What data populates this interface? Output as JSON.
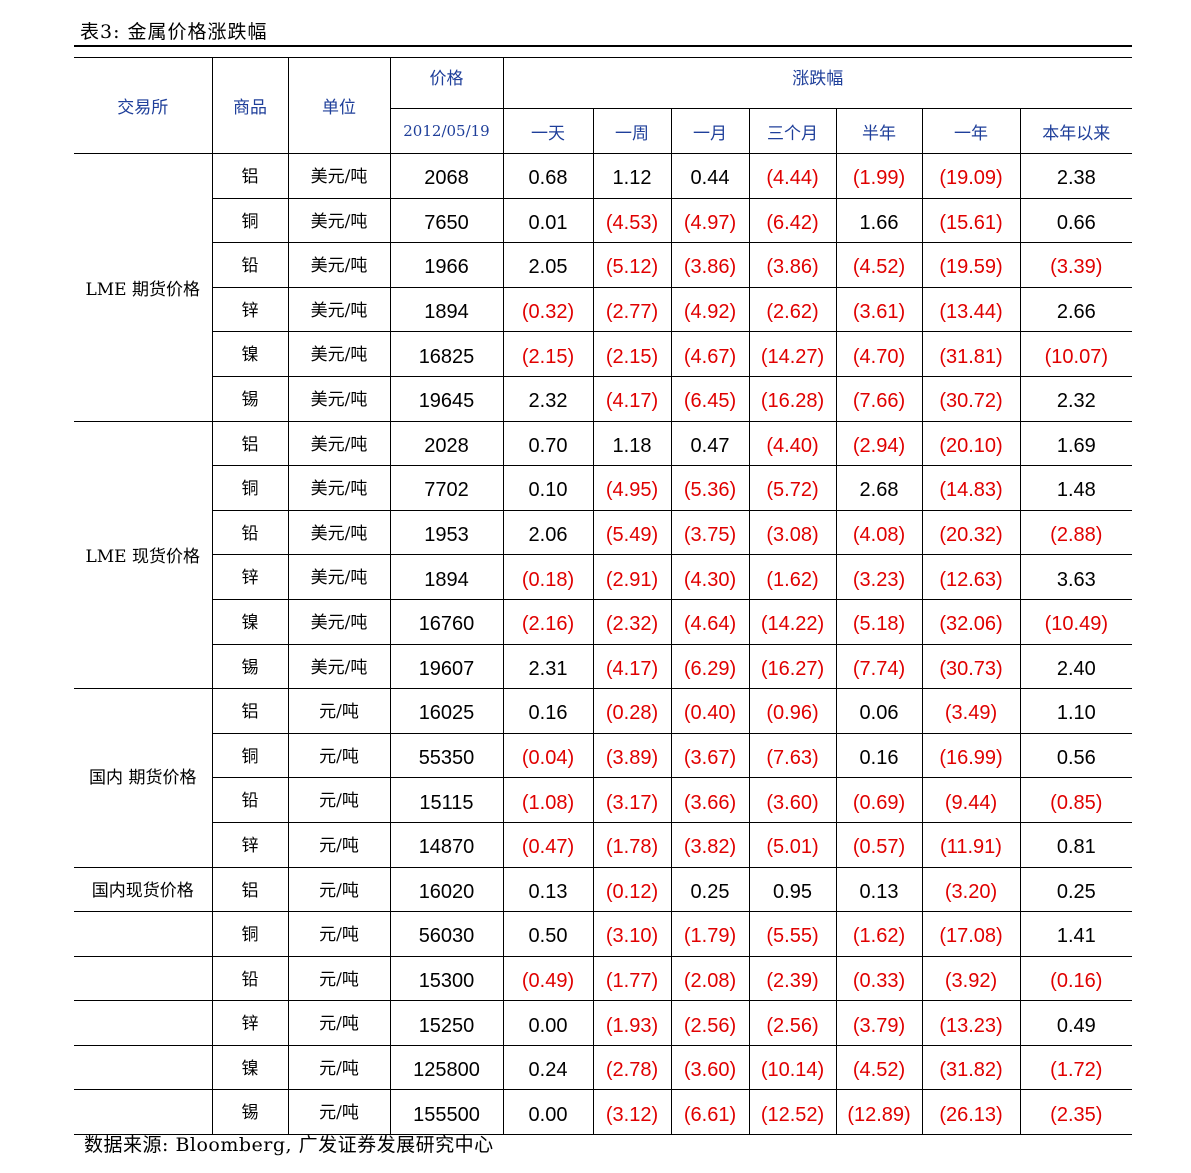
{
  "caption": "表3: 金属价格涨跌幅",
  "headers": {
    "exchange": "交易所",
    "product": "商品",
    "unit": "单位",
    "price": "价格",
    "price_date": "2012/05/19",
    "change": "涨跌幅",
    "periods": [
      "一天",
      "一周",
      "一月",
      "三个月",
      "半年",
      "一年",
      "本年以来"
    ]
  },
  "colors": {
    "header_text": "#1f3f9a",
    "negative": "#e00000"
  },
  "groups": [
    {
      "name": "LME 期货价格",
      "rows": [
        {
          "product": "铝",
          "unit": "美元/吨",
          "price": "2068",
          "changes": [
            "0.68",
            "1.12",
            "0.44",
            "(4.44)",
            "(1.99)",
            "(19.09)",
            "2.38"
          ]
        },
        {
          "product": "铜",
          "unit": "美元/吨",
          "price": "7650",
          "changes": [
            "0.01",
            "(4.53)",
            "(4.97)",
            "(6.42)",
            "1.66",
            "(15.61)",
            "0.66"
          ]
        },
        {
          "product": "铅",
          "unit": "美元/吨",
          "price": "1966",
          "changes": [
            "2.05",
            "(5.12)",
            "(3.86)",
            "(3.86)",
            "(4.52)",
            "(19.59)",
            "(3.39)"
          ]
        },
        {
          "product": "锌",
          "unit": "美元/吨",
          "price": "1894",
          "changes": [
            "(0.32)",
            "(2.77)",
            "(4.92)",
            "(2.62)",
            "(3.61)",
            "(13.44)",
            "2.66"
          ]
        },
        {
          "product": "镍",
          "unit": "美元/吨",
          "price": "16825",
          "changes": [
            "(2.15)",
            "(2.15)",
            "(4.67)",
            "(14.27)",
            "(4.70)",
            "(31.81)",
            "(10.07)"
          ]
        },
        {
          "product": "锡",
          "unit": "美元/吨",
          "price": "19645",
          "changes": [
            "2.32",
            "(4.17)",
            "(6.45)",
            "(16.28)",
            "(7.66)",
            "(30.72)",
            "2.32"
          ]
        }
      ]
    },
    {
      "name": "LME 现货价格",
      "rows": [
        {
          "product": "铝",
          "unit": "美元/吨",
          "price": "2028",
          "changes": [
            "0.70",
            "1.18",
            "0.47",
            "(4.40)",
            "(2.94)",
            "(20.10)",
            "1.69"
          ]
        },
        {
          "product": "铜",
          "unit": "美元/吨",
          "price": "7702",
          "changes": [
            "0.10",
            "(4.95)",
            "(5.36)",
            "(5.72)",
            "2.68",
            "(14.83)",
            "1.48"
          ]
        },
        {
          "product": "铅",
          "unit": "美元/吨",
          "price": "1953",
          "changes": [
            "2.06",
            "(5.49)",
            "(3.75)",
            "(3.08)",
            "(4.08)",
            "(20.32)",
            "(2.88)"
          ]
        },
        {
          "product": "锌",
          "unit": "美元/吨",
          "price": "1894",
          "changes": [
            "(0.18)",
            "(2.91)",
            "(4.30)",
            "(1.62)",
            "(3.23)",
            "(12.63)",
            "3.63"
          ]
        },
        {
          "product": "镍",
          "unit": "美元/吨",
          "price": "16760",
          "changes": [
            "(2.16)",
            "(2.32)",
            "(4.64)",
            "(14.22)",
            "(5.18)",
            "(32.06)",
            "(10.49)"
          ]
        },
        {
          "product": "锡",
          "unit": "美元/吨",
          "price": "19607",
          "changes": [
            "2.31",
            "(4.17)",
            "(6.29)",
            "(16.27)",
            "(7.74)",
            "(30.73)",
            "2.40"
          ]
        }
      ]
    },
    {
      "name": "国内 期货价格",
      "rows": [
        {
          "product": "铝",
          "unit": "元/吨",
          "price": "16025",
          "changes": [
            "0.16",
            "(0.28)",
            "(0.40)",
            "(0.96)",
            "0.06",
            "(3.49)",
            "1.10"
          ]
        },
        {
          "product": "铜",
          "unit": "元/吨",
          "price": "55350",
          "changes": [
            "(0.04)",
            "(3.89)",
            "(3.67)",
            "(7.63)",
            "0.16",
            "(16.99)",
            "0.56"
          ]
        },
        {
          "product": "铅",
          "unit": "元/吨",
          "price": "15115",
          "changes": [
            "(1.08)",
            "(3.17)",
            "(3.66)",
            "(3.60)",
            "(0.69)",
            "(9.44)",
            "(0.85)"
          ]
        },
        {
          "product": "锌",
          "unit": "元/吨",
          "price": "14870",
          "changes": [
            "(0.47)",
            "(1.78)",
            "(3.82)",
            "(5.01)",
            "(0.57)",
            "(11.91)",
            "0.81"
          ]
        }
      ]
    },
    {
      "name": "国内现货价格",
      "rows": [
        {
          "product": "铝",
          "unit": "元/吨",
          "price": "16020",
          "changes": [
            "0.13",
            "(0.12)",
            "0.25",
            "0.95",
            "0.13",
            "(3.20)",
            "0.25"
          ]
        },
        {
          "product": "铜",
          "unit": "元/吨",
          "price": "56030",
          "changes": [
            "0.50",
            "(3.10)",
            "(1.79)",
            "(5.55)",
            "(1.62)",
            "(17.08)",
            "1.41"
          ]
        },
        {
          "product": "铅",
          "unit": "元/吨",
          "price": "15300",
          "changes": [
            "(0.49)",
            "(1.77)",
            "(2.08)",
            "(2.39)",
            "(0.33)",
            "(3.92)",
            "(0.16)"
          ]
        },
        {
          "product": "锌",
          "unit": "元/吨",
          "price": "15250",
          "changes": [
            "0.00",
            "(1.93)",
            "(2.56)",
            "(2.56)",
            "(3.79)",
            "(13.23)",
            "0.49"
          ]
        },
        {
          "product": "镍",
          "unit": "元/吨",
          "price": "125800",
          "changes": [
            "0.24",
            "(2.78)",
            "(3.60)",
            "(10.14)",
            "(4.52)",
            "(31.82)",
            "(1.72)"
          ]
        },
        {
          "product": "锡",
          "unit": "元/吨",
          "price": "155500",
          "changes": [
            "0.00",
            "(3.12)",
            "(6.61)",
            "(12.52)",
            "(12.89)",
            "(26.13)",
            "(2.35)"
          ]
        }
      ]
    }
  ],
  "source": "数据来源: Bloomberg, 广发证券发展研究中心"
}
